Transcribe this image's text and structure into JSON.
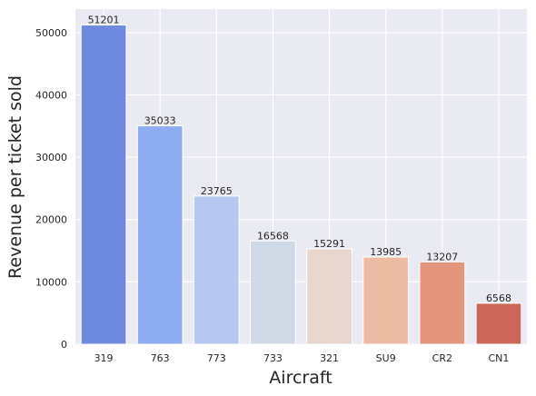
{
  "chart_data": {
    "type": "bar",
    "title": "",
    "xlabel": "Aircraft",
    "ylabel": "Revenue per ticket sold",
    "categories": [
      "319",
      "763",
      "773",
      "733",
      "321",
      "SU9",
      "CR2",
      "CN1"
    ],
    "values": [
      51201,
      35033,
      23765,
      16568,
      15291,
      13985,
      13207,
      6568
    ],
    "value_labels": [
      "51201",
      "35033",
      "23765",
      "16568",
      "15291",
      "13985",
      "13207",
      "6568"
    ],
    "ylim": [
      0,
      53760
    ],
    "yticks": [
      0,
      10000,
      20000,
      30000,
      40000,
      50000
    ],
    "ytick_labels": [
      "0",
      "10000",
      "20000",
      "30000",
      "40000",
      "50000"
    ],
    "grid": true,
    "legend": "none",
    "colors": [
      "#6f89dc",
      "#8fadf0",
      "#b6c8f1",
      "#d0dae7",
      "#e6d6cd",
      "#edbba3",
      "#e3967b",
      "#cb6758"
    ],
    "background": "#eaeaf2"
  }
}
